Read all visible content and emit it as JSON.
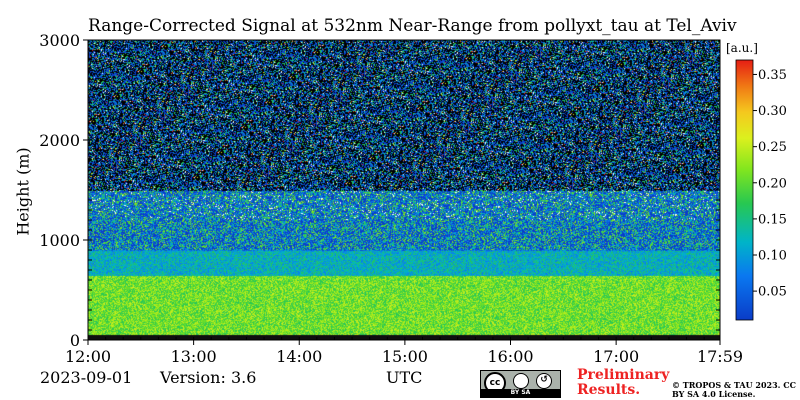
{
  "chart_data": {
    "type": "heatmap",
    "title": "Range-Corrected Signal at 532nm Near-Range from pollyxt_tau at Tel_Aviv",
    "xlabel": "UTC",
    "ylabel": "Height (m)",
    "x_range": [
      "12:00",
      "17:59"
    ],
    "x_ticks": [
      "12:00",
      "13:00",
      "14:00",
      "15:00",
      "16:00",
      "17:00",
      "17:59"
    ],
    "ylim": [
      0,
      3000
    ],
    "y_ticks": [
      0,
      1000,
      2000,
      3000
    ],
    "colorbar": {
      "label": "[a.u.]",
      "range": [
        0.01,
        0.37
      ],
      "ticks": [
        0.05,
        0.1,
        0.15,
        0.2,
        0.25,
        0.3,
        0.35
      ],
      "tick_labels": [
        "0.05",
        "0.10",
        "0.15",
        "0.20",
        "0.25",
        "0.30",
        "0.35"
      ],
      "colormap": "jet-like (blue-cyan-green-yellow-orange-red)"
    },
    "profile_summary": [
      {
        "height_m": [
          0,
          60
        ],
        "signal": 0.0
      },
      {
        "height_m": [
          60,
          650
        ],
        "signal": 0.21
      },
      {
        "height_m": [
          650,
          900
        ],
        "signal": 0.12
      },
      {
        "height_m": [
          900,
          1500
        ],
        "signal": 0.07
      },
      {
        "height_m": [
          1500,
          3000
        ],
        "signal": 0.03
      }
    ]
  },
  "footer": {
    "date": "2023-09-01",
    "version": "Version: 3.6",
    "preliminary": "Preliminary Results.",
    "copyright": "© TROPOS & TAU 2023. CC BY SA 4.0 License.",
    "license_badge": "BY SA"
  },
  "colors": {
    "background": "#ffffff",
    "preliminary_text": "#ee2222"
  }
}
